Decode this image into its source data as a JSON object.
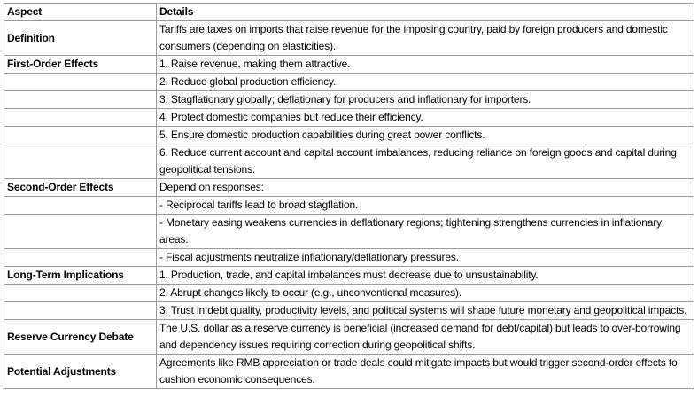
{
  "table": {
    "header": [
      "Aspect",
      "Details"
    ],
    "groups": [
      {
        "aspect": "Definition",
        "details": [
          "Tariffs are taxes on imports that raise revenue for the imposing country, paid by foreign producers and domestic consumers (depending on elasticities)."
        ]
      },
      {
        "aspect": "First-Order Effects",
        "details": [
          "1. Raise revenue, making them attractive.",
          "2. Reduce global production efficiency.",
          "3. Stagflationary globally; deflationary for producers and inflationary for importers.",
          "4. Protect domestic companies but reduce their efficiency.",
          "5. Ensure domestic production capabilities during great power conflicts.",
          "6. Reduce current account and capital account imbalances, reducing reliance on foreign goods and capital during geopolitical tensions."
        ]
      },
      {
        "aspect": "Second-Order Effects",
        "details": [
          "Depend on responses:",
          "- Reciprocal tariffs lead to broad stagflation.",
          "- Monetary easing weakens currencies in deflationary regions; tightening strengthens currencies in inflationary areas.",
          "- Fiscal adjustments neutralize inflationary/deflationary pressures."
        ]
      },
      {
        "aspect": "Long-Term Implications",
        "details": [
          "1. Production, trade, and capital imbalances must decrease due to unsustainability.",
          "2. Abrupt changes likely to occur (e.g., unconventional measures).",
          "3. Trust in debt quality, productivity levels, and political systems will shape future monetary and geopolitical impacts."
        ]
      },
      {
        "aspect": "Reserve Currency Debate",
        "details": [
          "The U.S. dollar as a reserve currency is beneficial (increased demand for debt/capital) but leads to over-borrowing and dependency issues requiring correction during geopolitical shifts."
        ]
      },
      {
        "aspect": "Potential Adjustments",
        "details": [
          "Agreements like RMB appreciation or trade deals could mitigate impacts but would trigger second-order effects to cushion economic consequences."
        ]
      }
    ]
  }
}
